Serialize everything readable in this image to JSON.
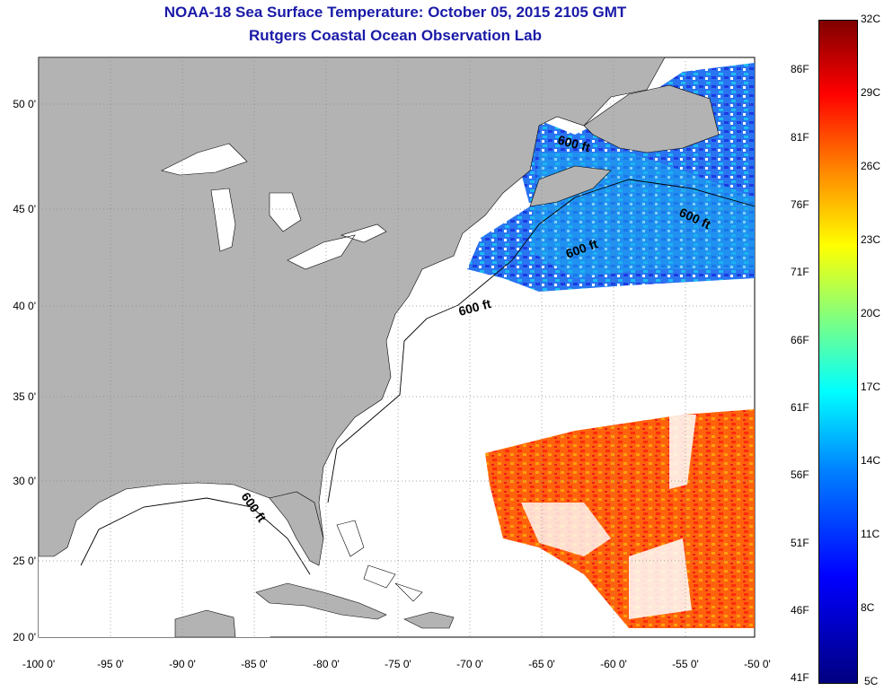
{
  "title": {
    "line1": "NOAA-18 Sea Surface Temperature:  October 05, 2015 2105 GMT",
    "line2": "Rutgers Coastal Ocean Observation Lab"
  },
  "map": {
    "lat_labels": [
      "50 0'",
      "45 0'",
      "40 0'",
      "35 0'",
      "30 0'",
      "25 0'",
      "20 0'"
    ],
    "lon_labels": [
      "-100 0'",
      "-95 0'",
      "-90 0'",
      "-85 0'",
      "-80 0'",
      "-75 0'",
      "-70 0'",
      "-65 0'",
      "-60 0'",
      "-55 0'",
      "-50 0'"
    ],
    "depth_contour_label": "600 ft",
    "colors": {
      "land": "#b3b3b3",
      "ocean_nodata": "#ffffff",
      "title": "#1a1aa8"
    }
  },
  "colorbar": {
    "fahrenheit": [
      "86F",
      "81F",
      "76F",
      "71F",
      "66F",
      "61F",
      "56F",
      "51F",
      "46F",
      "41F"
    ],
    "celsius": [
      "32C",
      "29C",
      "26C",
      "23C",
      "20C",
      "17C",
      "14C",
      "11C",
      "8C",
      "5C"
    ],
    "min_c": 5,
    "max_c": 32
  }
}
